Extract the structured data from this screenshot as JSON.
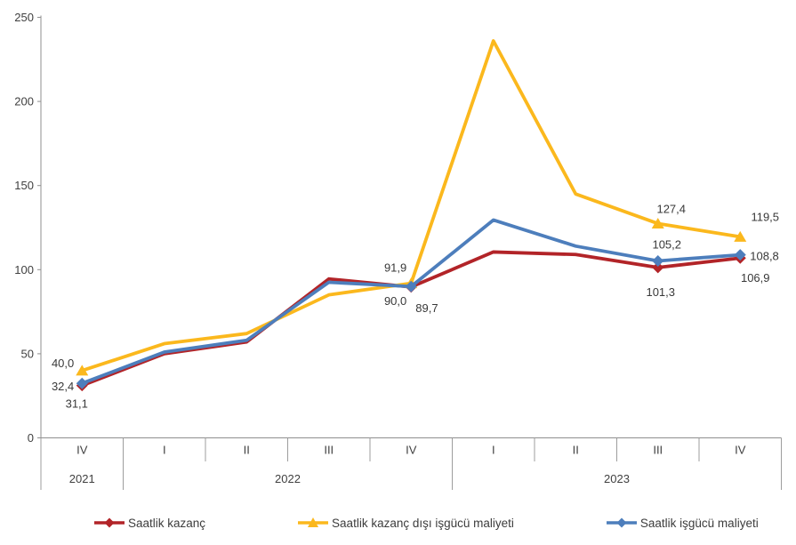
{
  "chart_data": {
    "type": "line",
    "title": "",
    "xlabel": "",
    "ylabel": "",
    "ylim": [
      0,
      250
    ],
    "y_ticks": [
      0,
      50,
      100,
      150,
      200,
      250
    ],
    "grid": false,
    "legend_position": "bottom",
    "decimal_separator": ",",
    "categories": [
      "IV",
      "I",
      "II",
      "III",
      "IV",
      "I",
      "II",
      "III",
      "IV"
    ],
    "year_row": [
      {
        "label": "2021",
        "span": 1
      },
      {
        "label": "2022",
        "span": 4
      },
      {
        "label": "2023",
        "span": 4
      }
    ],
    "series": [
      {
        "name": "Saatlik kazanç",
        "color": "#b22428",
        "marker": "diamond",
        "values": [
          31.1,
          50.0,
          57.0,
          94.5,
          89.7,
          110.5,
          109.0,
          101.3,
          106.9
        ],
        "point_labels": {
          "0": "31,1",
          "4": "89,7",
          "7": "101,3",
          "8": "106,9"
        }
      },
      {
        "name": "Saatlik kazanç dışı işgücü maliyeti",
        "color": "#fbb81d",
        "marker": "triangle",
        "values": [
          40.0,
          56.0,
          62.0,
          85.0,
          91.9,
          236.0,
          145.0,
          127.4,
          119.5
        ],
        "point_labels": {
          "0": "40,0",
          "4": "91,9",
          "7": "127,4",
          "8": "119,5"
        }
      },
      {
        "name": "Saatlik işgücü maliyeti",
        "color": "#4d7ebc",
        "marker": "diamond",
        "values": [
          32.4,
          51.0,
          58.0,
          92.5,
          90.0,
          129.5,
          114.0,
          105.2,
          108.8
        ],
        "point_labels": {
          "0": "32,4",
          "4": "90,0",
          "7": "105,2",
          "8": "108,8"
        }
      }
    ]
  }
}
